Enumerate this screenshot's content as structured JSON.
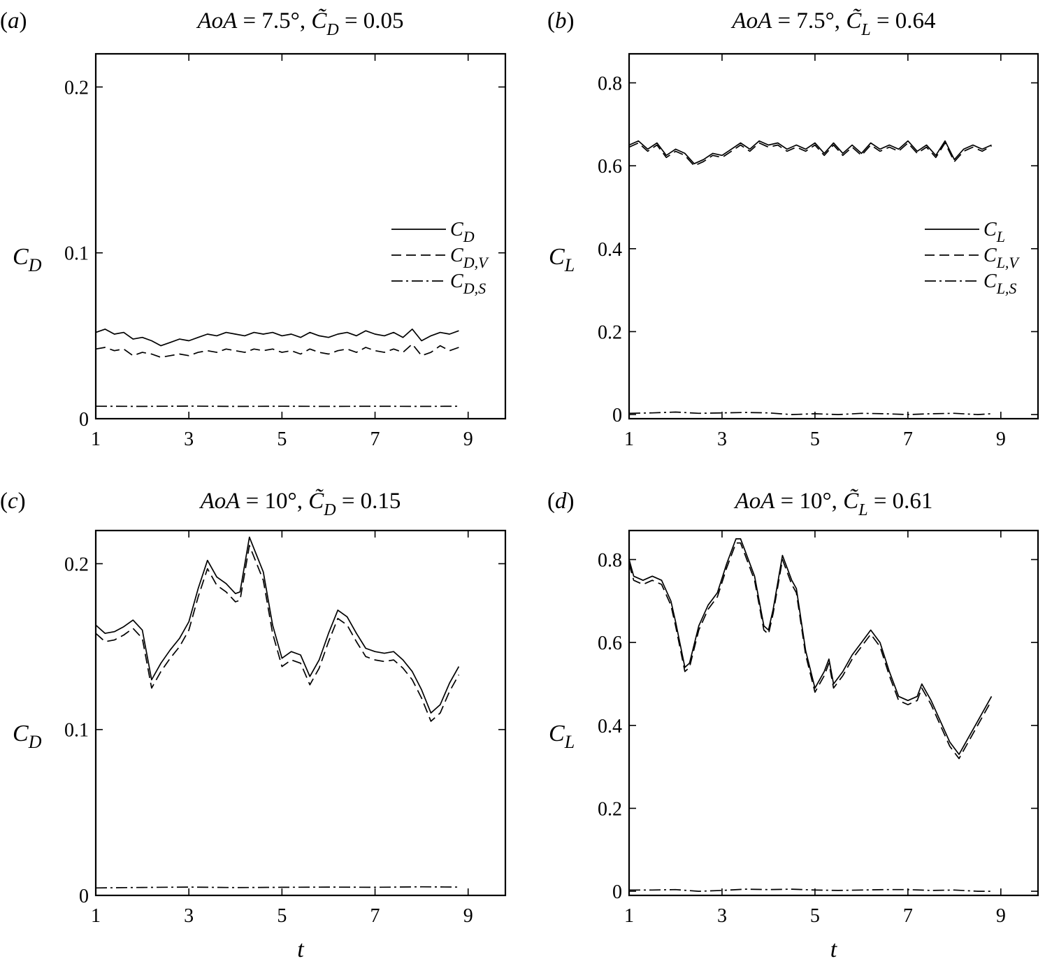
{
  "chart_data": [
    {
      "type": "line",
      "panel_label": "(a)",
      "title": {
        "prefix": "AoA",
        "angle": " = 7.5°, ",
        "sym": "C̃",
        "sub": "D",
        "value": " = 0.05"
      },
      "xlabel": "",
      "ylabel": {
        "main": "C",
        "sub": "D"
      },
      "xlim": [
        1,
        9.8
      ],
      "ylim": [
        0,
        0.22
      ],
      "xticks": [
        1,
        3,
        5,
        7,
        9
      ],
      "xtick_labels": [
        "1",
        "3",
        "5",
        "7",
        "9"
      ],
      "yticks": [
        0,
        0.1,
        0.2
      ],
      "ytick_labels": [
        "0",
        "0.1",
        "0.2"
      ],
      "legend_position": "center-right",
      "series": [
        {
          "name": {
            "main": "C",
            "sub": "D"
          },
          "style": "solid",
          "x": [
            1.0,
            1.2,
            1.4,
            1.6,
            1.8,
            2.0,
            2.2,
            2.4,
            2.6,
            2.8,
            3.0,
            3.2,
            3.4,
            3.6,
            3.8,
            4.0,
            4.2,
            4.4,
            4.6,
            4.8,
            5.0,
            5.2,
            5.4,
            5.6,
            5.8,
            6.0,
            6.2,
            6.4,
            6.6,
            6.8,
            7.0,
            7.2,
            7.4,
            7.6,
            7.8,
            8.0,
            8.2,
            8.4,
            8.6,
            8.8
          ],
          "y": [
            0.052,
            0.054,
            0.051,
            0.052,
            0.048,
            0.049,
            0.047,
            0.044,
            0.046,
            0.048,
            0.047,
            0.049,
            0.051,
            0.05,
            0.052,
            0.051,
            0.05,
            0.052,
            0.051,
            0.052,
            0.05,
            0.051,
            0.049,
            0.052,
            0.05,
            0.049,
            0.051,
            0.052,
            0.05,
            0.053,
            0.051,
            0.05,
            0.052,
            0.049,
            0.054,
            0.047,
            0.05,
            0.052,
            0.051,
            0.053
          ]
        },
        {
          "name": {
            "main": "C",
            "sub": "D,V"
          },
          "style": "dashed",
          "x": [
            1.0,
            1.2,
            1.4,
            1.6,
            1.8,
            2.0,
            2.2,
            2.4,
            2.6,
            2.8,
            3.0,
            3.2,
            3.4,
            3.6,
            3.8,
            4.0,
            4.2,
            4.4,
            4.6,
            4.8,
            5.0,
            5.2,
            5.4,
            5.6,
            5.8,
            6.0,
            6.2,
            6.4,
            6.6,
            6.8,
            7.0,
            7.2,
            7.4,
            7.6,
            7.8,
            8.0,
            8.2,
            8.4,
            8.6,
            8.8
          ],
          "y": [
            0.042,
            0.043,
            0.041,
            0.042,
            0.038,
            0.04,
            0.039,
            0.037,
            0.038,
            0.039,
            0.038,
            0.04,
            0.041,
            0.04,
            0.042,
            0.041,
            0.04,
            0.042,
            0.041,
            0.042,
            0.04,
            0.041,
            0.039,
            0.042,
            0.04,
            0.039,
            0.041,
            0.042,
            0.04,
            0.043,
            0.041,
            0.04,
            0.042,
            0.04,
            0.045,
            0.038,
            0.04,
            0.044,
            0.041,
            0.043
          ]
        },
        {
          "name": {
            "main": "C",
            "sub": "D,S"
          },
          "style": "dashdot",
          "x": [
            1.0,
            2.0,
            3.0,
            4.0,
            5.0,
            6.0,
            7.0,
            8.0,
            8.8
          ],
          "y": [
            0.0075,
            0.0074,
            0.0076,
            0.0074,
            0.0075,
            0.0074,
            0.0075,
            0.0074,
            0.0075
          ]
        }
      ]
    },
    {
      "type": "line",
      "panel_label": "(b)",
      "title": {
        "prefix": "AoA",
        "angle": " = 7.5°, ",
        "sym": "C̃",
        "sub": "L",
        "value": " = 0.64"
      },
      "xlabel": "",
      "ylabel": {
        "main": "C",
        "sub": "L"
      },
      "xlim": [
        1,
        9.8
      ],
      "ylim": [
        -0.01,
        0.87
      ],
      "xticks": [
        1,
        3,
        5,
        7,
        9
      ],
      "xtick_labels": [
        "1",
        "3",
        "5",
        "7",
        "9"
      ],
      "yticks": [
        0,
        0.2,
        0.4,
        0.6,
        0.8
      ],
      "ytick_labels": [
        "0",
        "0.2",
        "0.4",
        "0.6",
        "0.8"
      ],
      "legend_position": "center-right",
      "series": [
        {
          "name": {
            "main": "C",
            "sub": "L"
          },
          "style": "solid",
          "x": [
            1.0,
            1.2,
            1.4,
            1.6,
            1.8,
            2.0,
            2.2,
            2.4,
            2.6,
            2.8,
            3.0,
            3.2,
            3.4,
            3.6,
            3.8,
            4.0,
            4.2,
            4.4,
            4.6,
            4.8,
            5.0,
            5.2,
            5.4,
            5.6,
            5.8,
            6.0,
            6.2,
            6.4,
            6.6,
            6.8,
            7.0,
            7.2,
            7.4,
            7.6,
            7.8,
            8.0,
            8.2,
            8.4,
            8.6,
            8.8
          ],
          "y": [
            0.65,
            0.66,
            0.64,
            0.655,
            0.625,
            0.64,
            0.63,
            0.605,
            0.615,
            0.63,
            0.625,
            0.64,
            0.655,
            0.64,
            0.66,
            0.65,
            0.655,
            0.64,
            0.65,
            0.64,
            0.655,
            0.63,
            0.655,
            0.63,
            0.65,
            0.63,
            0.655,
            0.64,
            0.65,
            0.64,
            0.66,
            0.635,
            0.65,
            0.625,
            0.66,
            0.615,
            0.64,
            0.65,
            0.64,
            0.65
          ]
        },
        {
          "name": {
            "main": "C",
            "sub": "L,V"
          },
          "style": "dashed",
          "x": [
            1.0,
            1.2,
            1.4,
            1.6,
            1.8,
            2.0,
            2.2,
            2.4,
            2.6,
            2.8,
            3.0,
            3.2,
            3.4,
            3.6,
            3.8,
            4.0,
            4.2,
            4.4,
            4.6,
            4.8,
            5.0,
            5.2,
            5.4,
            5.6,
            5.8,
            6.0,
            6.2,
            6.4,
            6.6,
            6.8,
            7.0,
            7.2,
            7.4,
            7.6,
            7.8,
            8.0,
            8.2,
            8.4,
            8.6,
            8.8
          ],
          "y": [
            0.645,
            0.655,
            0.635,
            0.65,
            0.62,
            0.635,
            0.625,
            0.6,
            0.61,
            0.625,
            0.62,
            0.635,
            0.65,
            0.635,
            0.655,
            0.645,
            0.65,
            0.635,
            0.645,
            0.635,
            0.65,
            0.625,
            0.65,
            0.625,
            0.645,
            0.625,
            0.65,
            0.635,
            0.645,
            0.635,
            0.655,
            0.63,
            0.645,
            0.62,
            0.655,
            0.61,
            0.635,
            0.645,
            0.635,
            0.648
          ]
        },
        {
          "name": {
            "main": "C",
            "sub": "L,S"
          },
          "style": "dashdot",
          "x": [
            1.0,
            1.5,
            2.0,
            2.5,
            3.0,
            3.5,
            4.0,
            4.5,
            5.0,
            5.5,
            6.0,
            6.5,
            7.0,
            7.5,
            8.0,
            8.5,
            8.8
          ],
          "y": [
            0.003,
            0.004,
            0.006,
            0.003,
            0.004,
            0.005,
            0.004,
            0.0,
            0.002,
            0.0,
            0.003,
            0.002,
            0.0,
            0.002,
            0.003,
            0.0,
            0.002
          ]
        }
      ]
    },
    {
      "type": "line",
      "panel_label": "(c)",
      "title": {
        "prefix": "AoA",
        "angle": " = 10°, ",
        "sym": "C̃",
        "sub": "D",
        "value": " = 0.15"
      },
      "xlabel": "t",
      "ylabel": {
        "main": "C",
        "sub": "D"
      },
      "xlim": [
        1,
        9.8
      ],
      "ylim": [
        0,
        0.22
      ],
      "xticks": [
        1,
        3,
        5,
        7,
        9
      ],
      "xtick_labels": [
        "1",
        "3",
        "5",
        "7",
        "9"
      ],
      "yticks": [
        0,
        0.1,
        0.2
      ],
      "ytick_labels": [
        "0",
        "0.1",
        "0.2"
      ],
      "legend_position": "none",
      "series": [
        {
          "name": {
            "main": "C",
            "sub": "D"
          },
          "style": "solid",
          "x": [
            1.0,
            1.2,
            1.4,
            1.6,
            1.8,
            2.0,
            2.2,
            2.4,
            2.6,
            2.8,
            3.0,
            3.2,
            3.4,
            3.6,
            3.8,
            4.0,
            4.1,
            4.3,
            4.6,
            4.8,
            5.0,
            5.2,
            5.4,
            5.6,
            5.8,
            6.0,
            6.2,
            6.4,
            6.6,
            6.8,
            7.0,
            7.2,
            7.4,
            7.6,
            7.8,
            8.0,
            8.2,
            8.4,
            8.6,
            8.8
          ],
          "y": [
            0.163,
            0.158,
            0.159,
            0.162,
            0.166,
            0.16,
            0.13,
            0.14,
            0.148,
            0.155,
            0.165,
            0.185,
            0.202,
            0.192,
            0.188,
            0.182,
            0.183,
            0.216,
            0.195,
            0.163,
            0.143,
            0.147,
            0.145,
            0.132,
            0.142,
            0.158,
            0.172,
            0.168,
            0.158,
            0.149,
            0.147,
            0.146,
            0.147,
            0.142,
            0.135,
            0.124,
            0.11,
            0.115,
            0.128,
            0.138
          ]
        },
        {
          "name": {
            "main": "C",
            "sub": "D,V"
          },
          "style": "dashed",
          "x": [
            1.0,
            1.2,
            1.4,
            1.6,
            1.8,
            2.0,
            2.2,
            2.4,
            2.6,
            2.8,
            3.0,
            3.2,
            3.4,
            3.6,
            3.8,
            4.0,
            4.1,
            4.3,
            4.6,
            4.8,
            5.0,
            5.2,
            5.4,
            5.6,
            5.8,
            6.0,
            6.2,
            6.4,
            6.6,
            6.8,
            7.0,
            7.2,
            7.4,
            7.6,
            7.8,
            8.0,
            8.2,
            8.4,
            8.6,
            8.8
          ],
          "y": [
            0.158,
            0.153,
            0.154,
            0.157,
            0.161,
            0.155,
            0.125,
            0.135,
            0.143,
            0.15,
            0.16,
            0.18,
            0.197,
            0.187,
            0.183,
            0.177,
            0.178,
            0.211,
            0.19,
            0.158,
            0.138,
            0.142,
            0.14,
            0.127,
            0.137,
            0.153,
            0.167,
            0.163,
            0.153,
            0.144,
            0.142,
            0.141,
            0.142,
            0.137,
            0.13,
            0.119,
            0.105,
            0.11,
            0.123,
            0.133
          ]
        },
        {
          "name": {
            "main": "C",
            "sub": "D,S"
          },
          "style": "dashdot",
          "x": [
            1.0,
            2.0,
            3.0,
            4.0,
            5.0,
            6.0,
            7.0,
            8.0,
            8.8
          ],
          "y": [
            0.0045,
            0.0048,
            0.005,
            0.0047,
            0.0049,
            0.005,
            0.0049,
            0.0052,
            0.005
          ]
        }
      ]
    },
    {
      "type": "line",
      "panel_label": "(d)",
      "title": {
        "prefix": "AoA",
        "angle": " = 10°, ",
        "sym": "C̃",
        "sub": "L",
        "value": " = 0.61"
      },
      "xlabel": "t",
      "ylabel": {
        "main": "C",
        "sub": "L"
      },
      "xlim": [
        1,
        9.8
      ],
      "ylim": [
        -0.01,
        0.87
      ],
      "xticks": [
        1,
        3,
        5,
        7,
        9
      ],
      "xtick_labels": [
        "1",
        "3",
        "5",
        "7",
        "9"
      ],
      "yticks": [
        0,
        0.2,
        0.4,
        0.6,
        0.8
      ],
      "ytick_labels": [
        "0",
        "0.2",
        "0.4",
        "0.6",
        "0.8"
      ],
      "legend_position": "none",
      "series": [
        {
          "name": {
            "main": "C",
            "sub": "L"
          },
          "style": "solid",
          "x": [
            1.0,
            1.1,
            1.3,
            1.5,
            1.7,
            1.9,
            2.0,
            2.2,
            2.3,
            2.5,
            2.7,
            2.9,
            3.1,
            3.3,
            3.4,
            3.5,
            3.7,
            3.9,
            4.0,
            4.1,
            4.3,
            4.5,
            4.6,
            4.8,
            5.0,
            5.2,
            5.3,
            5.4,
            5.6,
            5.8,
            6.0,
            6.2,
            6.4,
            6.6,
            6.8,
            7.0,
            7.2,
            7.3,
            7.5,
            7.7,
            7.9,
            8.1,
            8.3,
            8.5,
            8.8
          ],
          "y": [
            0.8,
            0.76,
            0.75,
            0.76,
            0.75,
            0.7,
            0.65,
            0.54,
            0.55,
            0.64,
            0.69,
            0.72,
            0.79,
            0.85,
            0.85,
            0.82,
            0.76,
            0.64,
            0.63,
            0.68,
            0.81,
            0.75,
            0.73,
            0.58,
            0.49,
            0.53,
            0.56,
            0.5,
            0.53,
            0.57,
            0.6,
            0.63,
            0.6,
            0.53,
            0.47,
            0.46,
            0.47,
            0.5,
            0.46,
            0.41,
            0.36,
            0.33,
            0.37,
            0.41,
            0.47
          ]
        },
        {
          "name": {
            "main": "C",
            "sub": "L,V"
          },
          "style": "dashed",
          "x": [
            1.0,
            1.1,
            1.3,
            1.5,
            1.7,
            1.9,
            2.0,
            2.2,
            2.3,
            2.5,
            2.7,
            2.9,
            3.1,
            3.3,
            3.4,
            3.5,
            3.7,
            3.9,
            4.0,
            4.1,
            4.3,
            4.5,
            4.6,
            4.8,
            5.0,
            5.2,
            5.3,
            5.4,
            5.6,
            5.8,
            6.0,
            6.2,
            6.4,
            6.6,
            6.8,
            7.0,
            7.2,
            7.3,
            7.5,
            7.7,
            7.9,
            8.1,
            8.3,
            8.5,
            8.8
          ],
          "y": [
            0.79,
            0.75,
            0.74,
            0.75,
            0.74,
            0.69,
            0.64,
            0.53,
            0.54,
            0.63,
            0.68,
            0.71,
            0.78,
            0.84,
            0.84,
            0.81,
            0.75,
            0.63,
            0.62,
            0.67,
            0.8,
            0.74,
            0.72,
            0.57,
            0.48,
            0.52,
            0.55,
            0.49,
            0.52,
            0.56,
            0.59,
            0.62,
            0.59,
            0.52,
            0.46,
            0.45,
            0.46,
            0.49,
            0.45,
            0.4,
            0.35,
            0.32,
            0.36,
            0.4,
            0.46
          ]
        },
        {
          "name": {
            "main": "C",
            "sub": "L,S"
          },
          "style": "dashdot",
          "x": [
            1.0,
            1.5,
            2.0,
            2.5,
            3.0,
            3.5,
            4.0,
            4.5,
            5.0,
            5.5,
            6.0,
            6.5,
            7.0,
            7.5,
            8.0,
            8.5,
            8.8
          ],
          "y": [
            0.003,
            0.003,
            0.004,
            0.0,
            0.002,
            0.005,
            0.004,
            0.005,
            0.003,
            0.002,
            0.003,
            0.004,
            0.004,
            0.002,
            0.003,
            0.0,
            0.0
          ]
        }
      ]
    }
  ]
}
